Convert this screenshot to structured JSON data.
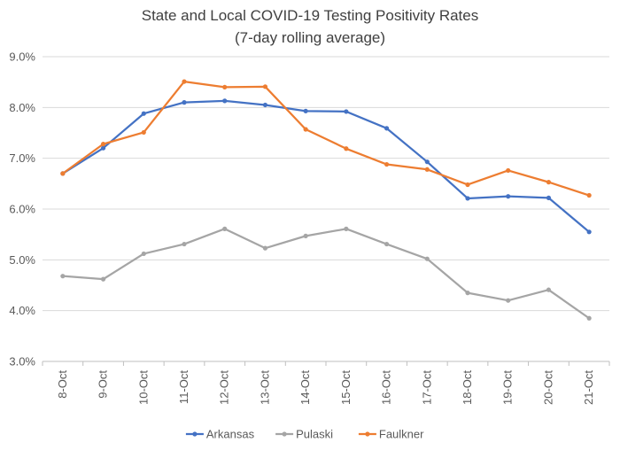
{
  "chart_data": {
    "type": "line",
    "title": "State and Local COVID-19 Testing Positivity Rates",
    "subtitle": "(7-day rolling average)",
    "categories": [
      "8-Oct",
      "9-Oct",
      "10-Oct",
      "11-Oct",
      "12-Oct",
      "13-Oct",
      "14-Oct",
      "15-Oct",
      "16-Oct",
      "17-Oct",
      "18-Oct",
      "19-Oct",
      "20-Oct",
      "21-Oct"
    ],
    "ylim": [
      3.0,
      9.0
    ],
    "yticks": [
      3.0,
      4.0,
      5.0,
      6.0,
      7.0,
      8.0,
      9.0
    ],
    "ytick_labels": [
      "3.0%",
      "4.0%",
      "5.0%",
      "6.0%",
      "7.0%",
      "8.0%",
      "9.0%"
    ],
    "grid": true,
    "legend_position": "bottom",
    "series": [
      {
        "name": "Arkansas",
        "color": "#4472C4",
        "values": [
          6.7,
          7.2,
          7.88,
          8.1,
          8.13,
          8.05,
          7.93,
          7.92,
          7.59,
          6.93,
          6.21,
          6.25,
          6.22,
          5.55
        ]
      },
      {
        "name": "Pulaski",
        "color": "#A5A5A5",
        "values": [
          4.68,
          4.62,
          5.12,
          5.31,
          5.61,
          5.23,
          5.47,
          5.61,
          5.31,
          5.02,
          4.35,
          4.2,
          4.41,
          3.85
        ]
      },
      {
        "name": "Faulkner",
        "color": "#ED7D31",
        "values": [
          6.7,
          7.28,
          7.51,
          8.51,
          8.4,
          8.41,
          7.57,
          7.19,
          6.88,
          6.78,
          6.48,
          6.76,
          6.53,
          6.27
        ]
      }
    ]
  }
}
